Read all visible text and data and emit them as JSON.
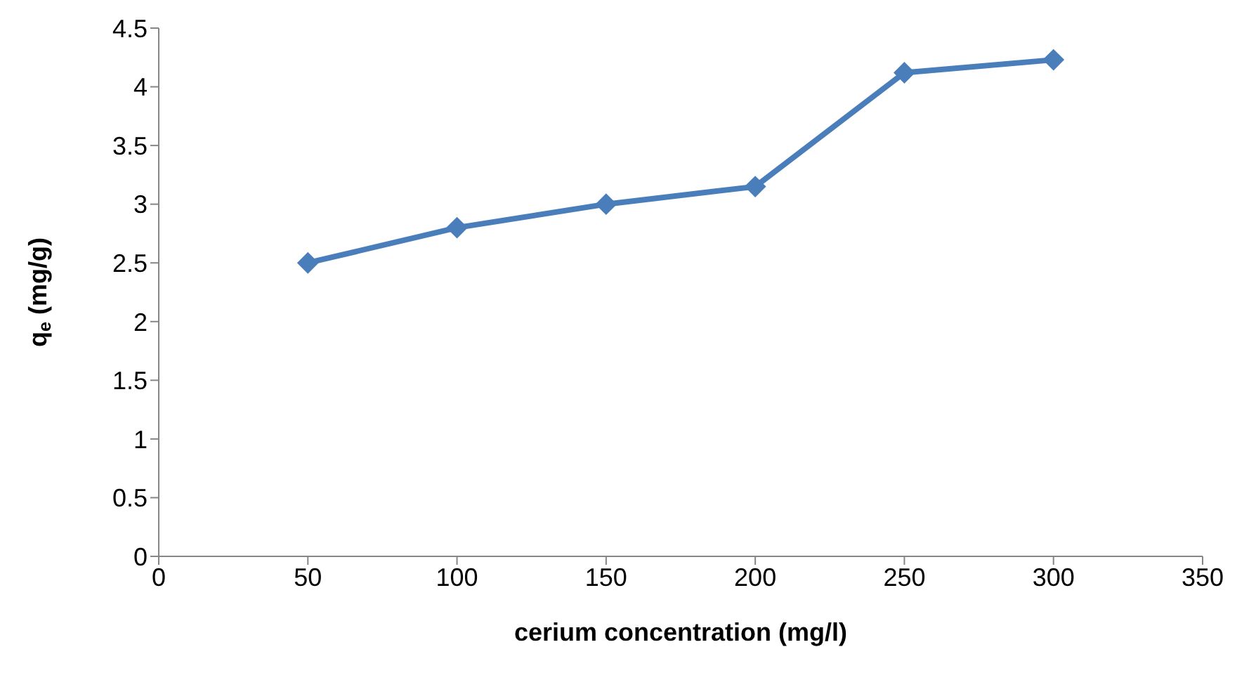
{
  "chart_data": {
    "type": "line",
    "xlabel": "cerium concentration (mg/l)",
    "ylabel": "q$_{e}$ (mg/g)",
    "x": [
      50,
      100,
      150,
      200,
      250,
      300
    ],
    "series": [
      {
        "color": "#4a7ebb",
        "values": [
          2.5,
          2.8,
          3.0,
          3.15,
          4.12,
          4.23
        ]
      }
    ],
    "xlim": [
      0,
      350
    ],
    "xticks": [
      0,
      50,
      100,
      150,
      200,
      250,
      300,
      350
    ],
    "ylim": [
      0,
      4.5
    ],
    "yticks": [
      0,
      0.5,
      1,
      1.5,
      2,
      2.5,
      3,
      3.5,
      4,
      4.5
    ],
    "grid": false,
    "legend": false,
    "marker": "diamond",
    "line_style": "solid"
  }
}
